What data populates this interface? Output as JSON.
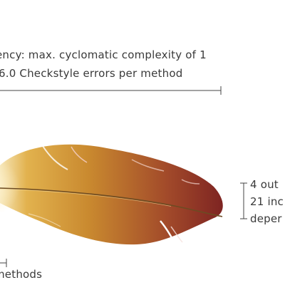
{
  "annotations": {
    "top_line_1": "ency: max. cyclomatic complexity of 1",
    "top_line_2": "6.0 Checkstyle errors per method",
    "right_line_1": "4 out",
    "right_line_2": "21 inc",
    "right_line_3": "deper",
    "bottom_line_1": "methods"
  }
}
